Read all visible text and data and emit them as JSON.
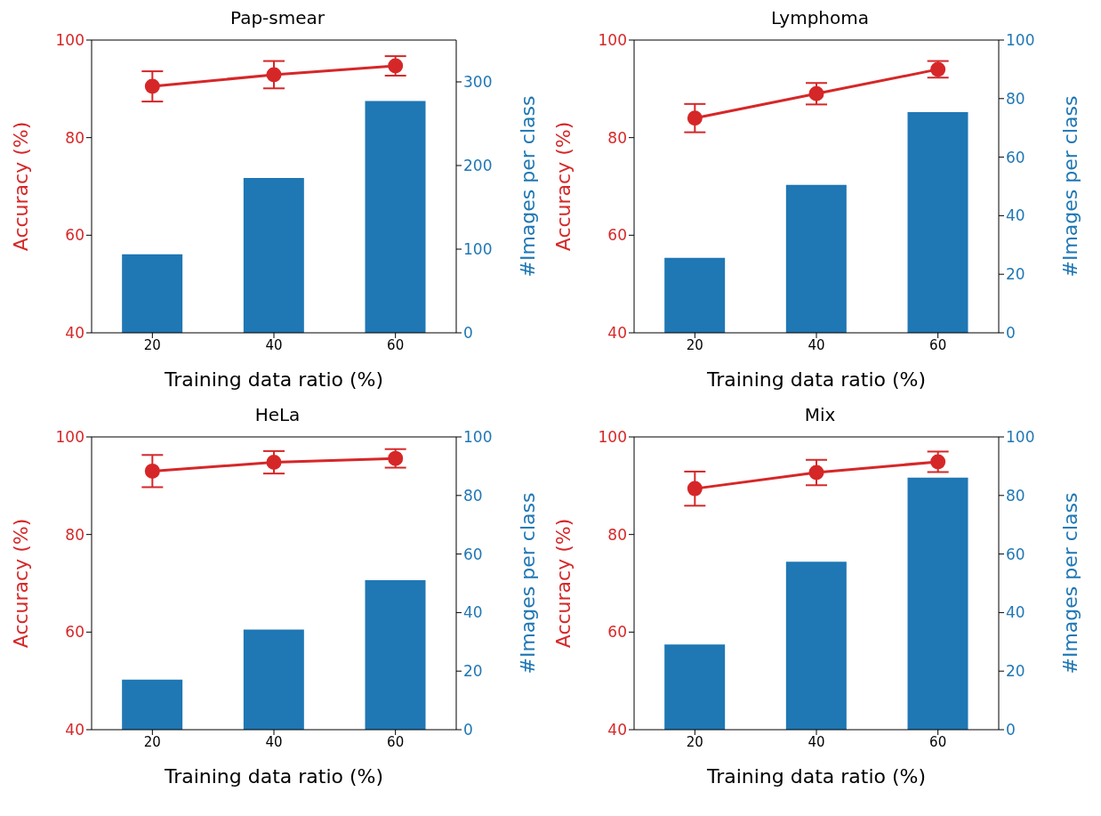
{
  "chart_data": [
    {
      "type": "bar",
      "title": "Pap-smear",
      "categories": [
        "20",
        "40",
        "60"
      ],
      "xlabel": "Training data ratio (%)",
      "ylabel": "Accuracy (%)",
      "y2label": "#Images per class",
      "ylim": [
        40,
        100
      ],
      "yticks": [
        40,
        60,
        80,
        100
      ],
      "y2lim": [
        0,
        350
      ],
      "y2ticks": [
        0,
        100,
        200,
        300
      ],
      "marker": "circle",
      "grid": false,
      "legend": false,
      "series": [
        {
          "axis": "y2",
          "color": "#1f77b4",
          "values": [
            94,
            185,
            277
          ]
        },
        {
          "type": "line",
          "color": "#d62728",
          "values": [
            90.5,
            92.9,
            94.7
          ],
          "errors": [
            3.1,
            2.8,
            2.0
          ]
        }
      ]
    },
    {
      "type": "bar",
      "title": "Lymphoma",
      "categories": [
        "20",
        "40",
        "60"
      ],
      "xlabel": "Training data ratio (%)",
      "ylabel": "Accuracy (%)",
      "y2label": "#Images per class",
      "ylim": [
        40,
        100
      ],
      "yticks": [
        40,
        60,
        80,
        100
      ],
      "y2lim": [
        0,
        100
      ],
      "y2ticks": [
        0,
        20,
        40,
        60,
        80,
        100
      ],
      "marker": "circle",
      "grid": false,
      "legend": false,
      "series": [
        {
          "axis": "y2",
          "color": "#1f77b4",
          "values": [
            25.6,
            50.5,
            75.4
          ]
        },
        {
          "type": "line",
          "color": "#d62728",
          "values": [
            84.0,
            89.0,
            94.0
          ],
          "errors": [
            2.9,
            2.2,
            1.7
          ]
        }
      ]
    },
    {
      "type": "bar",
      "title": "HeLa",
      "categories": [
        "20",
        "40",
        "60"
      ],
      "xlabel": "Training data ratio (%)",
      "ylabel": "Accuracy (%)",
      "y2label": "#Images per class",
      "ylim": [
        40,
        100
      ],
      "yticks": [
        40,
        60,
        80,
        100
      ],
      "y2lim": [
        0,
        100
      ],
      "y2ticks": [
        0,
        20,
        40,
        60,
        80,
        100
      ],
      "marker": "circle",
      "grid": false,
      "legend": false,
      "series": [
        {
          "axis": "y2",
          "color": "#1f77b4",
          "values": [
            17.1,
            34.2,
            51.1
          ]
        },
        {
          "type": "line",
          "color": "#d62728",
          "values": [
            93.0,
            94.8,
            95.6
          ],
          "errors": [
            3.3,
            2.3,
            1.9
          ]
        }
      ]
    },
    {
      "type": "bar",
      "title": "Mix",
      "categories": [
        "20",
        "40",
        "60"
      ],
      "xlabel": "Training data ratio (%)",
      "ylabel": "Accuracy (%)",
      "y2label": "#Images per class",
      "ylim": [
        40,
        100
      ],
      "yticks": [
        40,
        60,
        80,
        100
      ],
      "y2lim": [
        0,
        100
      ],
      "y2ticks": [
        0,
        20,
        40,
        60,
        80,
        100
      ],
      "marker": "circle",
      "grid": false,
      "legend": false,
      "series": [
        {
          "axis": "y2",
          "color": "#1f77b4",
          "values": [
            29.1,
            57.4,
            86.1
          ]
        },
        {
          "type": "line",
          "color": "#d62728",
          "values": [
            89.4,
            92.7,
            94.9
          ],
          "errors": [
            3.5,
            2.6,
            2.1
          ]
        }
      ]
    }
  ]
}
